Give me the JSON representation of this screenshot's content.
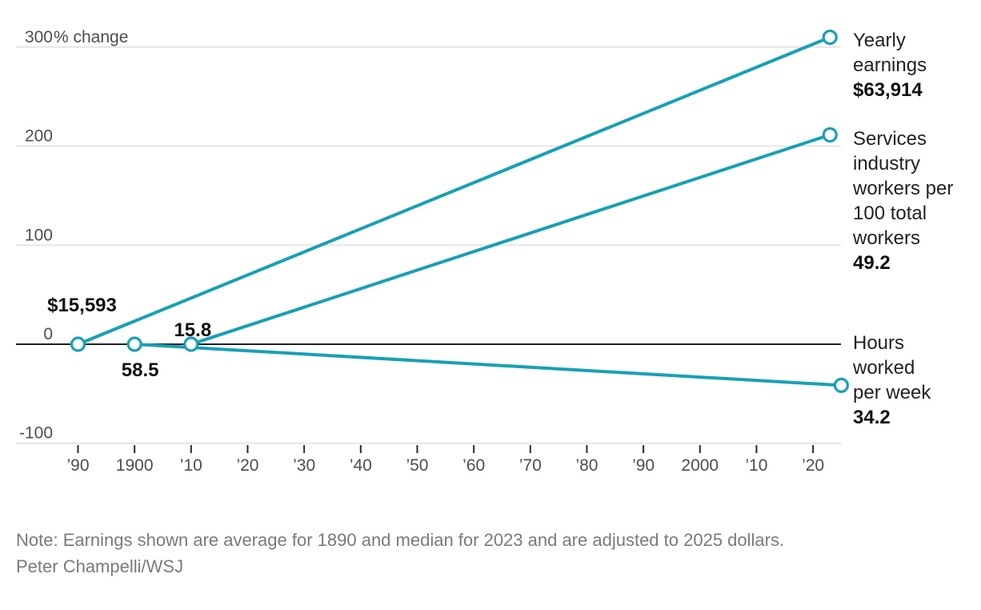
{
  "colors": {
    "line": "#18a0b4",
    "grid": "#e6e6e6",
    "zero_line": "#000000",
    "tick_mark": "#2b2b2b",
    "axis_text": "#4d4d4d",
    "label_text": "#222222",
    "value_text": "#111111",
    "note_text": "#7a7a7a",
    "background": "#ffffff"
  },
  "chart_data": {
    "type": "line",
    "y_axis": {
      "unit_suffix": "% change",
      "ticks": [
        {
          "value": 300,
          "label": "300",
          "suffix": "% change"
        },
        {
          "value": 200,
          "label": "200"
        },
        {
          "value": 100,
          "label": "100"
        },
        {
          "value": 0,
          "label": "0"
        },
        {
          "value": -100,
          "label": "-100"
        }
      ],
      "range": [
        -100,
        310
      ],
      "grid": true
    },
    "x_axis": {
      "range": [
        1890,
        2025
      ],
      "ticks": [
        {
          "year": 1890,
          "label": "’90"
        },
        {
          "year": 1900,
          "label": "1900"
        },
        {
          "year": 1910,
          "label": "’10"
        },
        {
          "year": 1920,
          "label": "’20"
        },
        {
          "year": 1930,
          "label": "’30"
        },
        {
          "year": 1940,
          "label": "’40"
        },
        {
          "year": 1950,
          "label": "’50"
        },
        {
          "year": 1960,
          "label": "’60"
        },
        {
          "year": 1970,
          "label": "’70"
        },
        {
          "year": 1980,
          "label": "’80"
        },
        {
          "year": 1990,
          "label": "’90"
        },
        {
          "year": 2000,
          "label": "2000"
        },
        {
          "year": 2010,
          "label": "’10"
        },
        {
          "year": 2020,
          "label": "’20"
        }
      ]
    },
    "series": [
      {
        "id": "yearly-earnings",
        "label_lines": [
          "Yearly",
          "earnings"
        ],
        "start": {
          "year": 1890,
          "pct_change": 0,
          "value_label": "$15,593"
        },
        "end": {
          "year": 2023,
          "pct_change": 309.9,
          "value_label": "$63,914"
        }
      },
      {
        "id": "services-industry-share",
        "label_lines": [
          "Services",
          "industry",
          "workers per",
          "100 total",
          "workers"
        ],
        "start": {
          "year": 1910,
          "pct_change": 0,
          "value_label": "15.8"
        },
        "end": {
          "year": 2023,
          "pct_change": 211.4,
          "value_label": "49.2"
        }
      },
      {
        "id": "hours-worked",
        "label_lines": [
          "Hours",
          "worked",
          "per week"
        ],
        "start": {
          "year": 1900,
          "pct_change": 0,
          "value_label": "58.5"
        },
        "end": {
          "year": 2025,
          "pct_change": -41.5,
          "value_label": "34.2"
        }
      }
    ],
    "legend_position": "right-of-line-ends"
  },
  "footer": {
    "note": "Note: Earnings shown are average for 1890 and median for 2023 and are adjusted to 2025 dollars.",
    "credit": "Peter Champelli/WSJ"
  }
}
